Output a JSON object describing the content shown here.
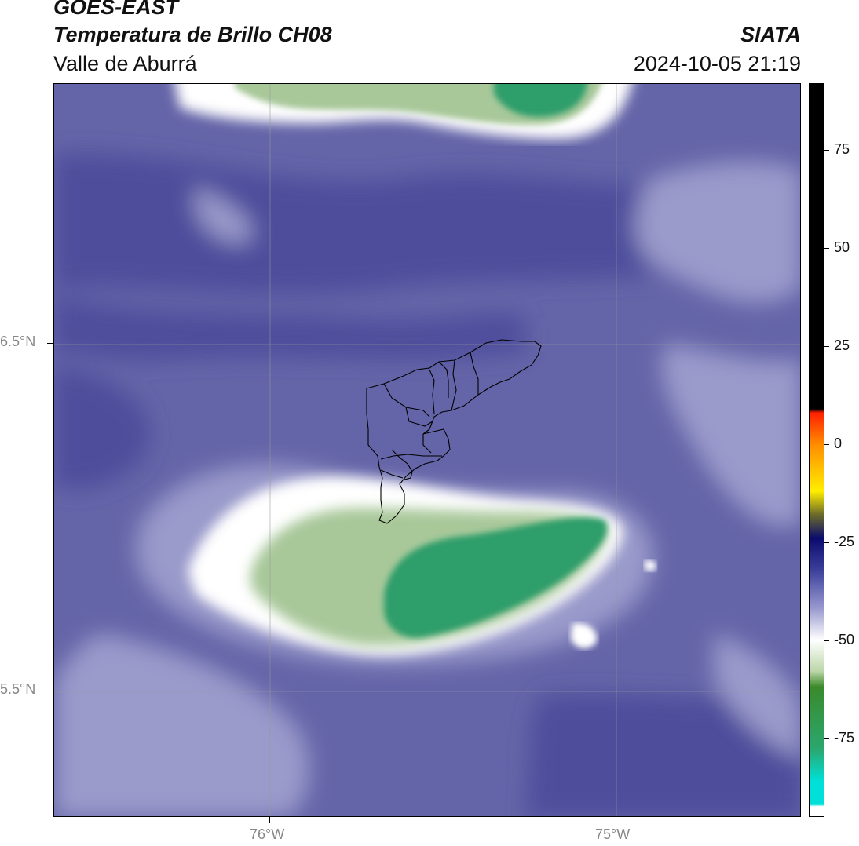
{
  "header": {
    "satellite": "GOES-EAST",
    "product": "Temperatura de Brillo CH08",
    "region": "Valle de Aburrá",
    "organization": "SIATA",
    "timestamp": "2024-10-05 21:19"
  },
  "axes": {
    "lat_labels": [
      "6.5°N",
      "5.5°N"
    ],
    "lon_labels": [
      "76°W",
      "75°W"
    ]
  },
  "colorbar": {
    "ticks": [
      "75",
      "50",
      "25",
      "0",
      "-25",
      "-50",
      "-75"
    ],
    "tick_values": [
      75,
      50,
      25,
      0,
      -25,
      -50,
      -75
    ],
    "range": [
      -95,
      92
    ],
    "colors": {
      "warm_black": "#000000",
      "red": "#ff2000",
      "orange": "#ff8c00",
      "yellow": "#ffee00",
      "olive": "#6b6b2a",
      "navy": "#0b0b6e",
      "indigo": "#3a3f9a",
      "lavender": "#9a9ad0",
      "white": "#ffffff",
      "green": "#3a8a2a",
      "teal": "#2aa870",
      "cyan": "#00e0d8"
    }
  },
  "field_colors": {
    "background": "#6464a8",
    "dark_band": "#4d4d9c",
    "light_band": "#9a9acb",
    "cloud_edge": "#ffffff",
    "cloud_mid": "#a8c89a",
    "cloud_core": "#2e9e6a"
  }
}
